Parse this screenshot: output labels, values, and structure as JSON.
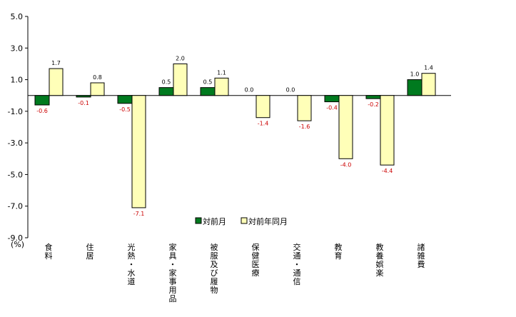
{
  "chart_data": {
    "type": "bar",
    "categories": [
      "食料",
      "住居",
      "光熱・水道",
      "家具・家事用品",
      "被服及び履物",
      "保健医療",
      "交通・通信",
      "教育",
      "教養娯楽",
      "諸雑費"
    ],
    "series": [
      {
        "name": "対前月",
        "values": [
          -0.6,
          -0.1,
          -0.5,
          0.5,
          0.5,
          0.0,
          0.0,
          -0.4,
          -0.2,
          1.0
        ],
        "color": "#007a1f"
      },
      {
        "name": "対前年同月",
        "values": [
          1.7,
          0.8,
          -7.1,
          2.0,
          1.1,
          -1.4,
          -1.6,
          -4.0,
          -4.4,
          1.4
        ],
        "color": "#ffffb8"
      }
    ],
    "value_labels": [
      [
        "-0.6",
        "-0.1",
        "-0.5",
        "0.5",
        "0.5",
        "0.0",
        "0.0",
        "-0.4",
        "-0.2",
        "1.0"
      ],
      [
        "1.7",
        "0.8",
        "-7.1",
        "2.0",
        "1.1",
        "-1.4",
        "-1.6",
        "-4.0",
        "-4.4",
        "1.4"
      ]
    ],
    "yticks": [
      "5.0",
      "3.0",
      "1.0",
      "-1.0",
      "-3.0",
      "-5.0",
      "-7.0",
      "-9.0"
    ],
    "ylim": [
      -9,
      5
    ],
    "yunit": "(%)",
    "legend_position": "bottom-right inside plot",
    "negative_label_color": "#cc0000",
    "positive_label_color": "#000000"
  }
}
